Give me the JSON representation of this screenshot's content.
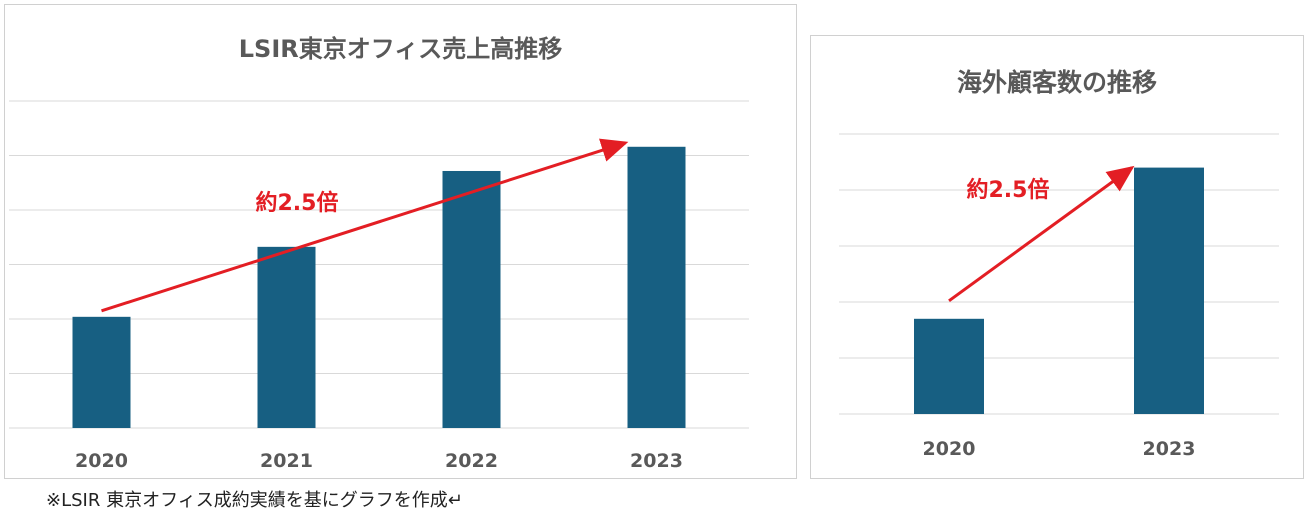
{
  "chart_data": [
    {
      "type": "bar",
      "title": "LSIR東京オフィス売上高推移",
      "categories": [
        "2020",
        "2021",
        "2022",
        "2023"
      ],
      "values": [
        1.7,
        2.77,
        3.93,
        4.3
      ],
      "ylim": [
        0,
        5
      ],
      "grid": true,
      "bar_color": "#175f82",
      "annotation": {
        "text": "約2.5倍",
        "color": "#e31e24"
      }
    },
    {
      "type": "bar",
      "title": "海外顧客数の推移",
      "categories": [
        "2020",
        "2023"
      ],
      "values": [
        1.7,
        4.4
      ],
      "ylim": [
        0,
        5
      ],
      "grid": true,
      "bar_color": "#175f82",
      "annotation": {
        "text": "約2.5倍",
        "color": "#e31e24"
      }
    }
  ],
  "footnote": "※LSIR 東京オフィス成約実績を基にグラフを作成↵"
}
